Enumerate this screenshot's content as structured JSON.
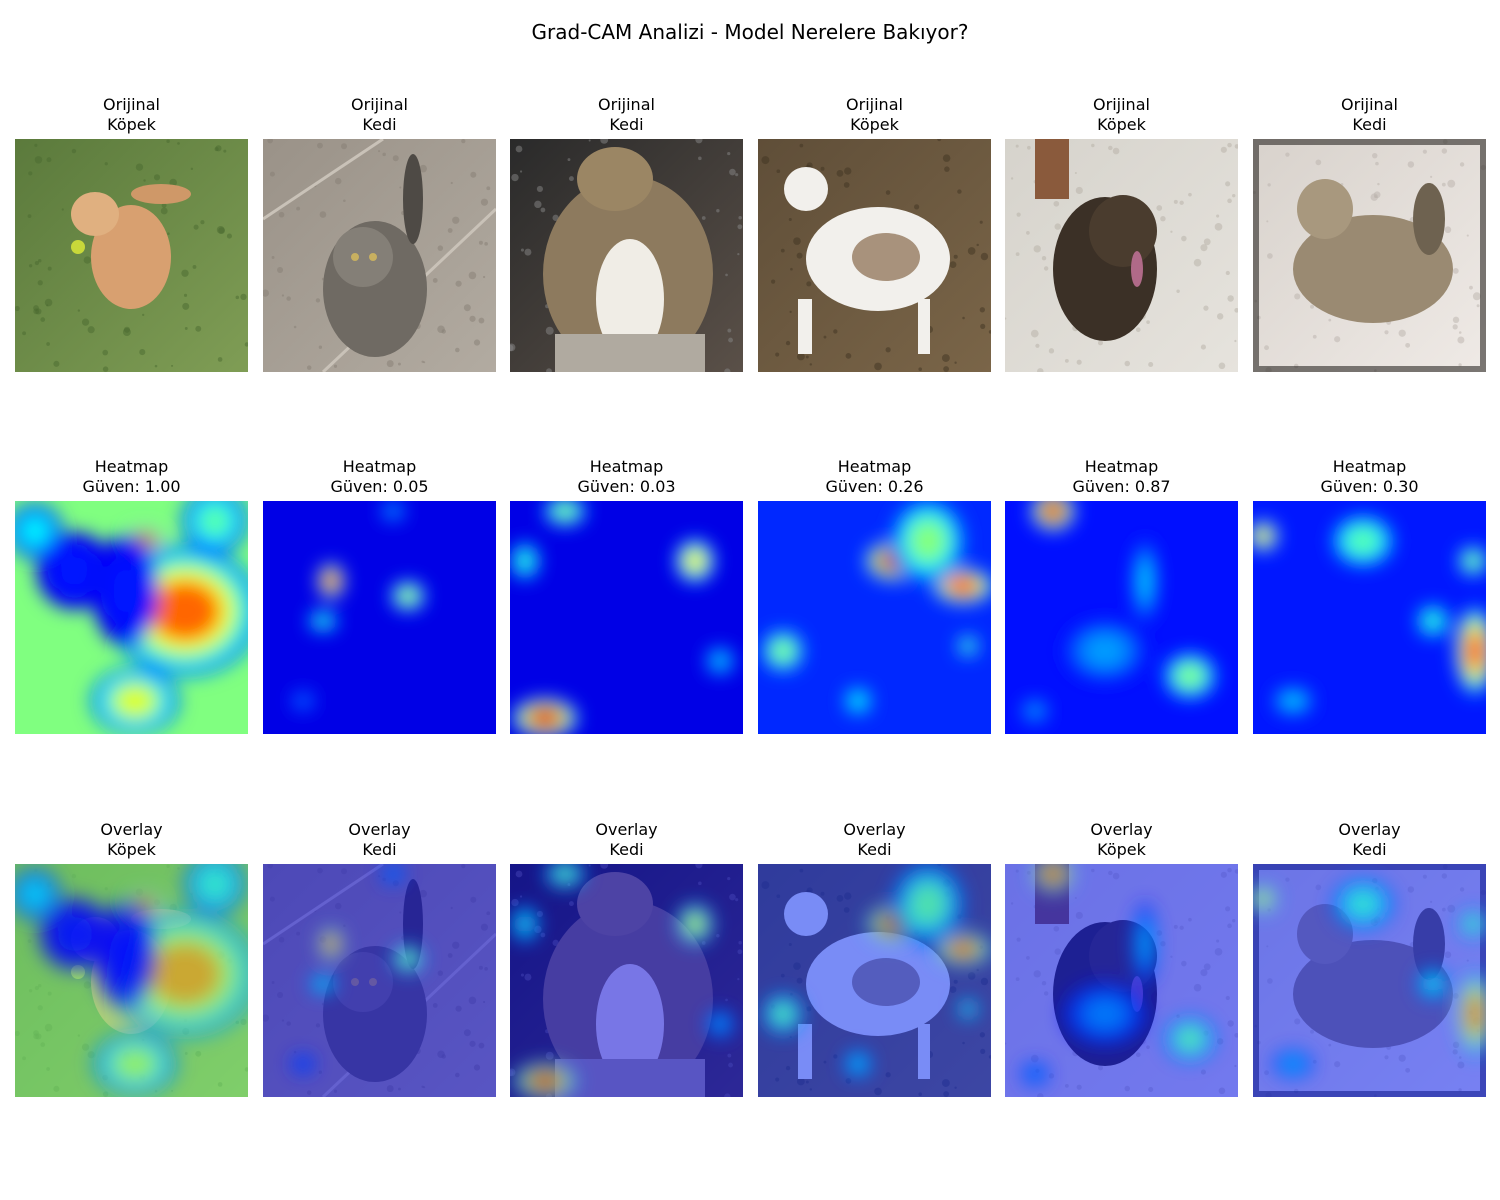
{
  "title": "Grad-CAM Analizi - Model Nerelere Bakıyor?",
  "rows": [
    {
      "row": "original",
      "panels": [
        {
          "line1": "Orijinal",
          "line2": "Köpek",
          "subject": "golden-retriever-on-grass"
        },
        {
          "line1": "Orijinal",
          "line2": "Kedi",
          "subject": "tabby-cat-on-tile-floor"
        },
        {
          "line1": "Orijinal",
          "line2": "Kedi",
          "subject": "long-haired-tabby-cat-by-cage"
        },
        {
          "line1": "Orijinal",
          "line2": "Köpek",
          "subject": "white-brown-dog-on-leaves"
        },
        {
          "line1": "Orijinal",
          "line2": "Köpek",
          "subject": "brindle-puppy-on-sand"
        },
        {
          "line1": "Orijinal",
          "line2": "Kedi",
          "subject": "tabby-cat-lying-on-carpet"
        }
      ]
    },
    {
      "row": "heatmap",
      "panels": [
        {
          "line1": "Heatmap",
          "line2": "Güven: 1.00"
        },
        {
          "line1": "Heatmap",
          "line2": "Güven: 0.05"
        },
        {
          "line1": "Heatmap",
          "line2": "Güven: 0.03"
        },
        {
          "line1": "Heatmap",
          "line2": "Güven: 0.26"
        },
        {
          "line1": "Heatmap",
          "line2": "Güven: 0.87"
        },
        {
          "line1": "Heatmap",
          "line2": "Güven: 0.30"
        }
      ]
    },
    {
      "row": "overlay",
      "panels": [
        {
          "line1": "Overlay",
          "line2": "Köpek"
        },
        {
          "line1": "Overlay",
          "line2": "Kedi"
        },
        {
          "line1": "Overlay",
          "line2": "Kedi"
        },
        {
          "line1": "Overlay",
          "line2": "Kedi"
        },
        {
          "line1": "Overlay",
          "line2": "Köpek"
        },
        {
          "line1": "Overlay",
          "line2": "Kedi"
        }
      ]
    }
  ],
  "colormap": "jet",
  "colors": {
    "jet_low": "#00007f",
    "jet_high": "#7f0000",
    "background": "#ffffff"
  }
}
